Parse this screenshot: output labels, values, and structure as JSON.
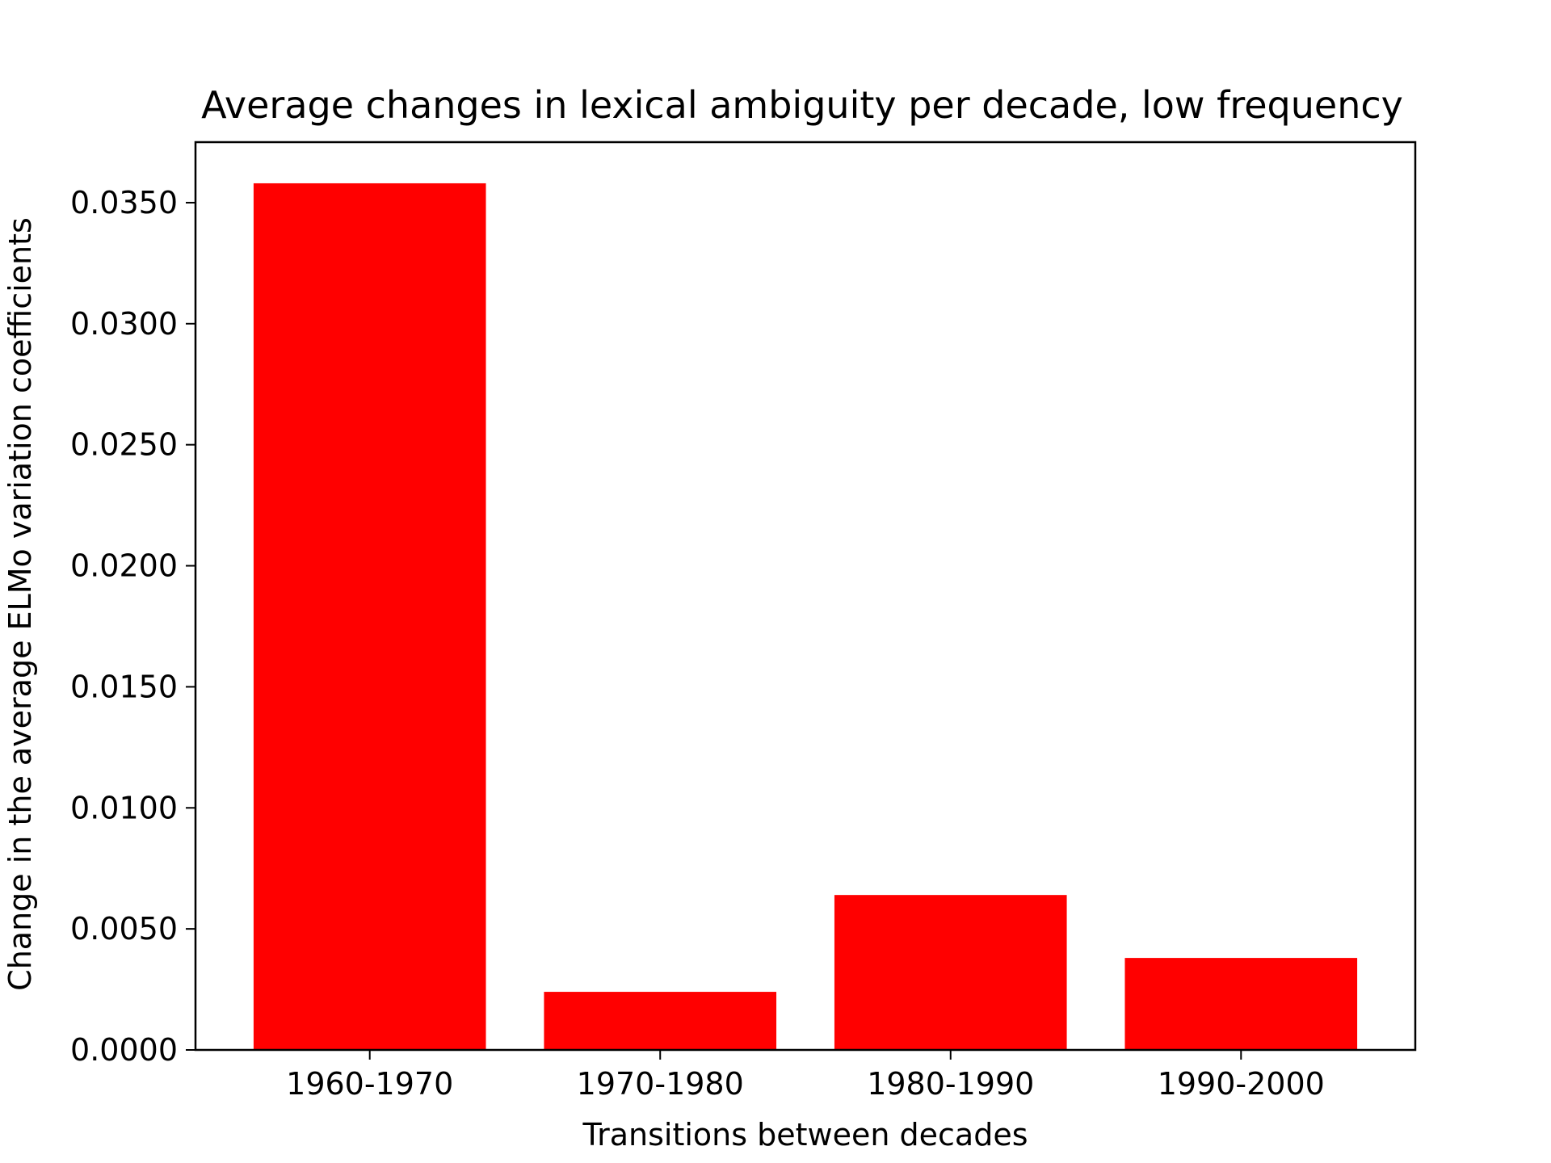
{
  "chart_data": {
    "type": "bar",
    "title": "Average changes in lexical ambiguity per decade, low frequency",
    "xlabel": "Transitions between decades",
    "ylabel": "Change in the average ELMo variation coefficients",
    "categories": [
      "1960-1970",
      "1970-1980",
      "1980-1990",
      "1990-2000"
    ],
    "values": [
      0.0358,
      0.0024,
      0.0064,
      0.0038
    ],
    "ylim": [
      0,
      0.0375
    ],
    "yticks": [
      0.0,
      0.005,
      0.01,
      0.015,
      0.02,
      0.025,
      0.03,
      0.035
    ],
    "ytick_labels": [
      "0.0000",
      "0.0050",
      "0.0100",
      "0.0150",
      "0.0200",
      "0.0250",
      "0.0300",
      "0.0350"
    ],
    "bar_color": "#ff0000",
    "grid": false,
    "legend": "none"
  }
}
